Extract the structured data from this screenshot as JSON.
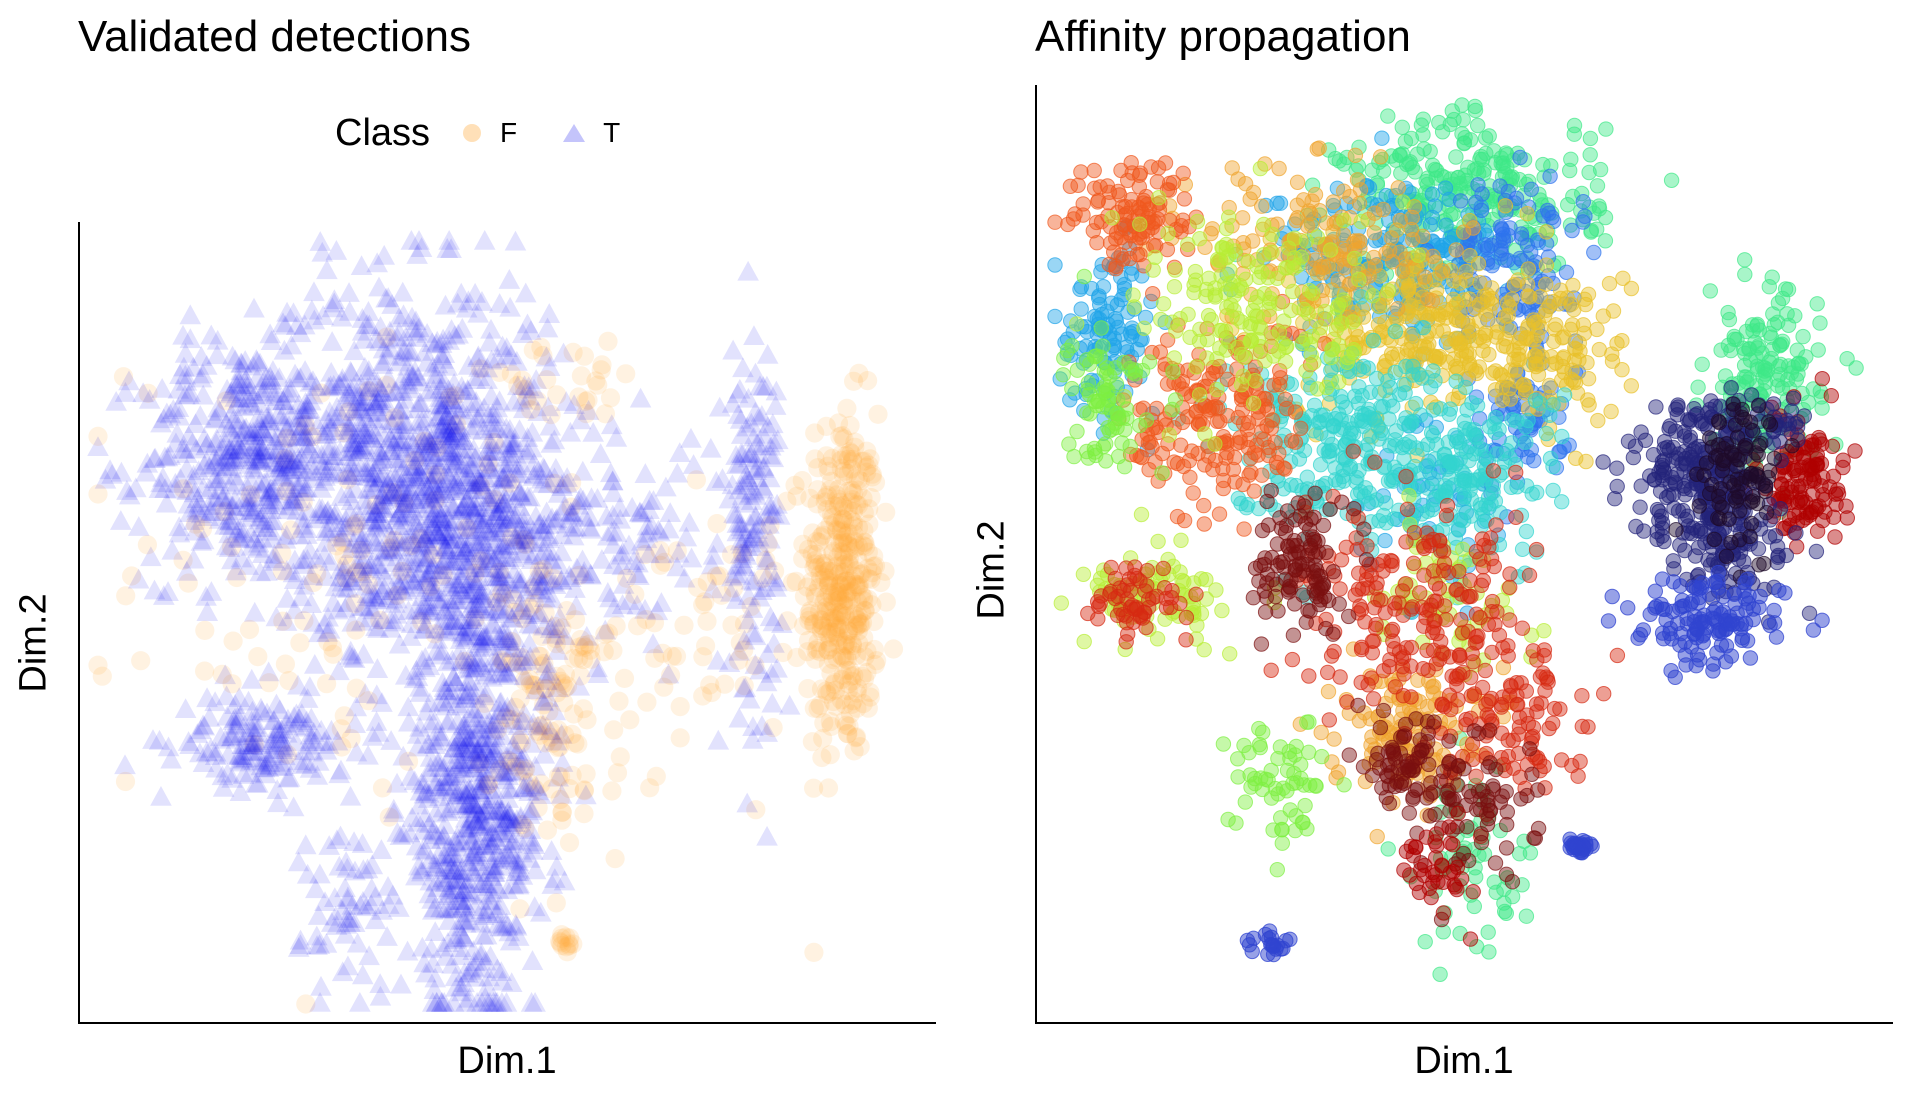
{
  "chart_data": [
    {
      "type": "scatter",
      "title": "Validated detections",
      "xlabel": "Dim.1",
      "ylabel": "Dim.2",
      "axis_ticks": false,
      "grid": false,
      "legend": {
        "title": "Class",
        "placement": "top",
        "entries": [
          {
            "label": "F",
            "shape": "circle",
            "color": "#FFA533"
          },
          {
            "label": "T",
            "shape": "triangle",
            "color": "#1414F0"
          }
        ]
      },
      "xlim": [
        -10,
        10
      ],
      "ylim": [
        -10,
        10
      ],
      "series": [
        {
          "name": "F",
          "marker": "circle",
          "color": "#FFA533",
          "opacity": 0.15,
          "clusters": [
            {
              "cx": 8.2,
              "cy": 1.0,
              "sx": 0.45,
              "sy": 2.3,
              "n": 380
            },
            {
              "cx": 4.8,
              "cy": -0.3,
              "sx": 1.4,
              "sy": 1.6,
              "n": 60
            },
            {
              "cx": 1.2,
              "cy": -2.4,
              "sx": 0.8,
              "sy": 1.8,
              "n": 120
            },
            {
              "cx": -3.5,
              "cy": 1.5,
              "sx": 2.8,
              "sy": 3.0,
              "n": 140
            },
            {
              "cx": 1.4,
              "cy": -8.4,
              "sx": 0.15,
              "sy": 0.15,
              "n": 12
            },
            {
              "cx": 1.5,
              "cy": 6.3,
              "sx": 1.3,
              "sy": 0.5,
              "n": 25
            }
          ]
        },
        {
          "name": "T",
          "marker": "triangle",
          "color": "#1414F0",
          "opacity": 0.12,
          "clusters": [
            {
              "cx": -6.5,
              "cy": 4.2,
              "sx": 1.2,
              "sy": 1.6,
              "n": 380
            },
            {
              "cx": -2.5,
              "cy": 5.0,
              "sx": 1.8,
              "sy": 2.0,
              "n": 700
            },
            {
              "cx": -1.0,
              "cy": 1.8,
              "sx": 1.8,
              "sy": 1.8,
              "n": 650
            },
            {
              "cx": -0.8,
              "cy": -5.0,
              "sx": 0.9,
              "sy": 2.5,
              "n": 650
            },
            {
              "cx": -6.0,
              "cy": -3.2,
              "sx": 1.0,
              "sy": 0.6,
              "n": 160
            },
            {
              "cx": 6.0,
              "cy": 2.8,
              "sx": 0.35,
              "sy": 2.4,
              "n": 150
            },
            {
              "cx": 3.0,
              "cy": 2.5,
              "sx": 1.4,
              "sy": 1.2,
              "n": 70
            },
            {
              "cx": -3.8,
              "cy": -7.5,
              "sx": 0.6,
              "sy": 1.2,
              "n": 60
            }
          ]
        }
      ]
    },
    {
      "type": "scatter",
      "title": "Affinity propagation",
      "xlabel": "Dim.1",
      "ylabel": "Dim.2",
      "axis_ticks": false,
      "grid": false,
      "legend": null,
      "xlim": [
        -10,
        10
      ],
      "ylim": [
        -10,
        10
      ],
      "series": [
        {
          "color": "#3EE887",
          "opacity": 0.45,
          "clusters": [
            {
              "cx": 0.2,
              "cy": 8.0,
              "sx": 1.6,
              "sy": 0.9,
              "n": 260
            },
            {
              "cx": 7.3,
              "cy": 3.8,
              "sx": 0.7,
              "sy": 1.0,
              "n": 150
            },
            {
              "cx": 0.3,
              "cy": -6.8,
              "sx": 0.7,
              "sy": 1.0,
              "n": 60
            }
          ]
        },
        {
          "color": "#1FA4E8",
          "opacity": 0.45,
          "clusters": [
            {
              "cx": -1.8,
              "cy": 6.5,
              "sx": 1.5,
              "sy": 0.9,
              "n": 220
            },
            {
              "cx": -8.7,
              "cy": 5.0,
              "sx": 0.6,
              "sy": 0.9,
              "n": 110
            },
            {
              "cx": -0.5,
              "cy": 1.5,
              "sx": 0.9,
              "sy": 1.0,
              "n": 60
            }
          ]
        },
        {
          "color": "#2E73EE",
          "opacity": 0.45,
          "clusters": [
            {
              "cx": 1.2,
              "cy": 6.5,
              "sx": 0.8,
              "sy": 0.9,
              "n": 120
            },
            {
              "cx": 1.3,
              "cy": 3.0,
              "sx": 0.6,
              "sy": 0.8,
              "n": 70
            }
          ]
        },
        {
          "color": "#E8C12A",
          "opacity": 0.45,
          "clusters": [
            {
              "cx": -1.0,
              "cy": 5.0,
              "sx": 1.5,
              "sy": 1.0,
              "n": 260
            },
            {
              "cx": 2.2,
              "cy": 4.5,
              "sx": 1.0,
              "sy": 1.0,
              "n": 120
            }
          ]
        },
        {
          "color": "#F0A52E",
          "opacity": 0.45,
          "clusters": [
            {
              "cx": -3.5,
              "cy": 7.0,
              "sx": 1.5,
              "sy": 0.9,
              "n": 150
            },
            {
              "cx": -1.5,
              "cy": -3.8,
              "sx": 0.9,
              "sy": 0.7,
              "n": 120
            }
          ]
        },
        {
          "color": "#33D4CF",
          "opacity": 0.45,
          "clusters": [
            {
              "cx": -2.8,
              "cy": 2.5,
              "sx": 1.5,
              "sy": 1.1,
              "n": 280
            },
            {
              "cx": 0.3,
              "cy": 1.8,
              "sx": 1.0,
              "sy": 1.0,
              "n": 130
            }
          ]
        },
        {
          "color": "#F0581E",
          "opacity": 0.45,
          "clusters": [
            {
              "cx": -8.0,
              "cy": 7.5,
              "sx": 0.8,
              "sy": 0.6,
              "n": 110
            },
            {
              "cx": -6.0,
              "cy": 3.0,
              "sx": 1.1,
              "sy": 1.1,
              "n": 200
            }
          ]
        },
        {
          "color": "#B8EE36",
          "opacity": 0.45,
          "clusters": [
            {
              "cx": -5.0,
              "cy": 5.5,
              "sx": 1.5,
              "sy": 1.1,
              "n": 180
            },
            {
              "cx": -7.5,
              "cy": -1.0,
              "sx": 0.9,
              "sy": 0.5,
              "n": 80
            },
            {
              "cx": -0.5,
              "cy": -1.0,
              "sx": 1.0,
              "sy": 0.8,
              "n": 60
            }
          ]
        },
        {
          "color": "#7EF041",
          "opacity": 0.45,
          "clusters": [
            {
              "cx": -8.7,
              "cy": 3.5,
              "sx": 0.5,
              "sy": 0.8,
              "n": 80
            },
            {
              "cx": -4.5,
              "cy": -5.0,
              "sx": 0.6,
              "sy": 0.7,
              "n": 60
            }
          ]
        },
        {
          "color": "#D62A12",
          "opacity": 0.45,
          "clusters": [
            {
              "cx": -1.0,
              "cy": -1.5,
              "sx": 1.4,
              "sy": 1.2,
              "n": 220
            },
            {
              "cx": -8.0,
              "cy": -1.0,
              "sx": 0.6,
              "sy": 0.5,
              "n": 60
            },
            {
              "cx": 1.2,
              "cy": -3.8,
              "sx": 0.9,
              "sy": 0.8,
              "n": 90
            }
          ]
        },
        {
          "color": "#7A0F0F",
          "opacity": 0.45,
          "clusters": [
            {
              "cx": -4.0,
              "cy": -0.2,
              "sx": 0.5,
              "sy": 0.7,
              "n": 110
            },
            {
              "cx": -1.5,
              "cy": -4.5,
              "sx": 0.4,
              "sy": 0.6,
              "n": 60
            },
            {
              "cx": 0.2,
              "cy": -5.5,
              "sx": 0.8,
              "sy": 0.8,
              "n": 80
            }
          ]
        },
        {
          "color": "#B00000",
          "opacity": 0.45,
          "clusters": [
            {
              "cx": 8.3,
              "cy": 1.7,
              "sx": 0.5,
              "sy": 0.7,
              "n": 120
            },
            {
              "cx": -0.6,
              "cy": -7.0,
              "sx": 0.4,
              "sy": 0.5,
              "n": 40
            }
          ]
        },
        {
          "color": "#23237A",
          "opacity": 0.45,
          "clusters": [
            {
              "cx": 5.8,
              "cy": 1.8,
              "sx": 0.9,
              "sy": 0.7,
              "n": 180
            },
            {
              "cx": 6.5,
              "cy": 0.2,
              "sx": 0.8,
              "sy": 0.6,
              "n": 110
            },
            {
              "cx": 6.8,
              "cy": 3.0,
              "sx": 0.9,
              "sy": 0.3,
              "n": 60
            }
          ]
        },
        {
          "color": "#1E0A2A",
          "opacity": 0.45,
          "clusters": [
            {
              "cx": 6.8,
              "cy": 1.8,
              "sx": 0.5,
              "sy": 0.8,
              "n": 90
            }
          ]
        },
        {
          "color": "#3044D0",
          "opacity": 0.5,
          "clusters": [
            {
              "cx": 6.0,
              "cy": -1.5,
              "sx": 0.9,
              "sy": 0.5,
              "n": 130
            },
            {
              "cx": 2.8,
              "cy": -6.5,
              "sx": 0.15,
              "sy": 0.1,
              "n": 30
            },
            {
              "cx": -4.7,
              "cy": -8.7,
              "sx": 0.3,
              "sy": 0.2,
              "n": 20
            }
          ]
        }
      ]
    }
  ]
}
